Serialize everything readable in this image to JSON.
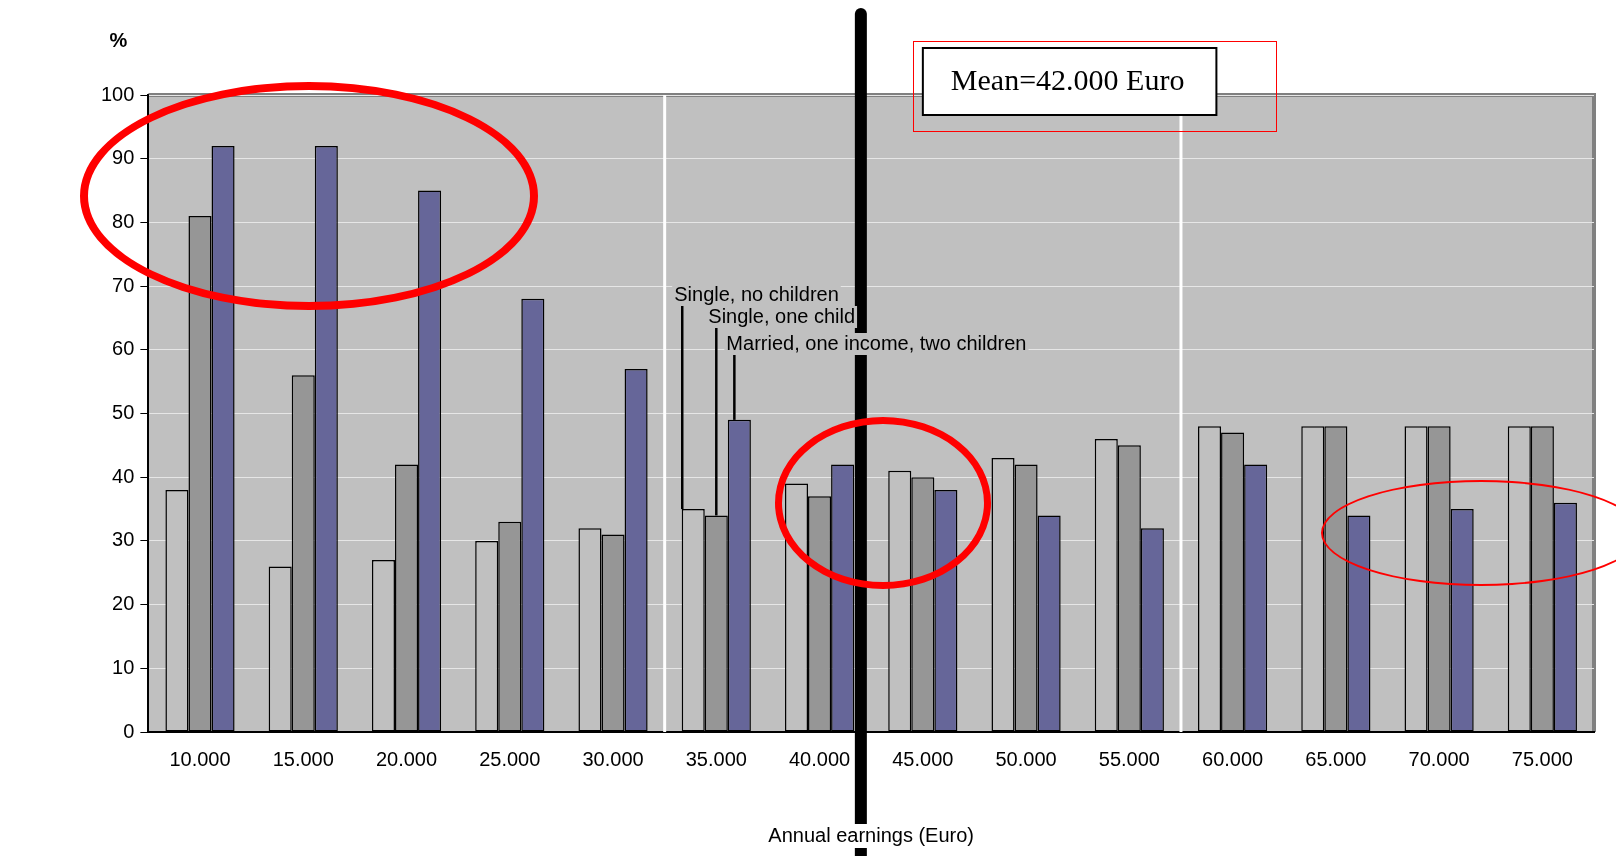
{
  "chart_data": {
    "type": "bar",
    "xlabel": "Annual earnings (Euro)",
    "ylabel": "%",
    "x": [
      10000,
      15000,
      20000,
      25000,
      30000,
      35000,
      40000,
      45000,
      50000,
      55000,
      60000,
      65000,
      70000,
      75000
    ],
    "xlim": [
      7500,
      77500
    ],
    "xticks": [
      {
        "value": 10000,
        "label": "10.000"
      },
      {
        "value": 15000,
        "label": "15.000"
      },
      {
        "value": 20000,
        "label": "20.000"
      },
      {
        "value": 25000,
        "label": "25.000"
      },
      {
        "value": 30000,
        "label": "30.000"
      },
      {
        "value": 35000,
        "label": "35.000"
      },
      {
        "value": 40000,
        "label": "40.000"
      },
      {
        "value": 45000,
        "label": "45.000"
      },
      {
        "value": 50000,
        "label": "50.000"
      },
      {
        "value": 55000,
        "label": "55.000"
      },
      {
        "value": 60000,
        "label": "60.000"
      },
      {
        "value": 65000,
        "label": "65.000"
      },
      {
        "value": 70000,
        "label": "70.000"
      },
      {
        "value": 75000,
        "label": "75.000"
      }
    ],
    "ylim": [
      0,
      100
    ],
    "yticks": [
      0,
      10,
      20,
      30,
      40,
      50,
      60,
      70,
      80,
      90,
      100
    ],
    "series": [
      {
        "name": "Single, no children",
        "color": "#c0c0c0",
        "values": [
          38,
          26,
          27,
          30,
          32,
          35,
          39,
          41,
          43,
          46,
          48,
          48,
          48,
          48
        ]
      },
      {
        "name": "Single, one child",
        "color": "#969696",
        "values": [
          81,
          56,
          42,
          33,
          31,
          34,
          37,
          40,
          42,
          45,
          47,
          48,
          48,
          48
        ]
      },
      {
        "name": "Married, one income, two children",
        "color": "#666699",
        "values": [
          92,
          92,
          85,
          68,
          57,
          49,
          42,
          38,
          34,
          32,
          42,
          34,
          35,
          36
        ]
      }
    ],
    "ref_lines": [
      {
        "axis": "x",
        "value": 42000,
        "label": "Mean=42.000 Euro",
        "color": "#000000"
      },
      {
        "axis": "x",
        "value": 32500,
        "label": null,
        "color": "#ffffff"
      },
      {
        "axis": "x",
        "value": 57500,
        "label": null,
        "color": "#ffffff"
      }
    ],
    "grid": "y",
    "legend": false
  }
}
